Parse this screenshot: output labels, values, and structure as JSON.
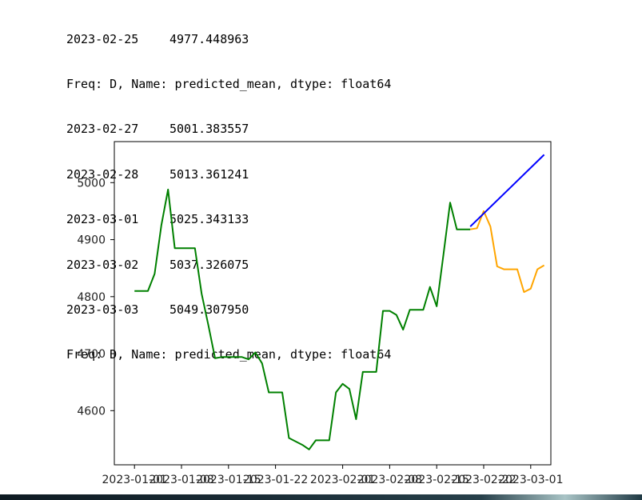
{
  "console": {
    "lines": [
      {
        "date": "2023-02-25",
        "value": "4977.448963"
      },
      {
        "text": "Freq: D, Name: predicted_mean, dtype: float64"
      },
      {
        "date": "2023-02-27",
        "value": "5001.383557"
      },
      {
        "date": "2023-02-28",
        "value": "5013.361241"
      },
      {
        "date": "2023-03-01",
        "value": "5025.343133"
      },
      {
        "date": "2023-03-02",
        "value": "5037.326075"
      },
      {
        "date": "2023-03-03",
        "value": "5049.307950"
      },
      {
        "text": "Freq: D, Name: predicted_mean, dtype: float64"
      }
    ]
  },
  "chart_data": {
    "type": "line",
    "title": "",
    "xlabel": "",
    "ylabel": "",
    "grid": false,
    "xlim": [
      "2022-12-29",
      "2023-03-04"
    ],
    "ylim": [
      4505,
      5072
    ],
    "x_ticks": [
      "2023-01-01",
      "2023-01-08",
      "2023-01-15",
      "2023-01-22",
      "2023-02-01",
      "2023-02-08",
      "2023-02-15",
      "2023-02-22",
      "2023-03-01"
    ],
    "x_tick_labels": [
      "2023-01-01",
      "2023-01-08",
      "2023-01-15",
      "2023-01-22",
      "2023-02-01",
      "2023-02-08",
      "2023-02-15",
      "2023-02-22",
      "2023-03-01"
    ],
    "y_ticks": [
      4600,
      4700,
      4800,
      4900,
      5000
    ],
    "y_tick_labels": [
      "4600",
      "4700",
      "4800",
      "4900",
      "5000"
    ],
    "series": [
      {
        "color": "#008000",
        "points": [
          [
            "2023-01-01",
            4810
          ],
          [
            "2023-01-03",
            4810
          ],
          [
            "2023-01-04",
            4840
          ],
          [
            "2023-01-05",
            4925
          ],
          [
            "2023-01-06",
            4988
          ],
          [
            "2023-01-07",
            4885
          ],
          [
            "2023-01-10",
            4885
          ],
          [
            "2023-01-11",
            4805
          ],
          [
            "2023-01-12",
            4750
          ],
          [
            "2023-01-13",
            4692
          ],
          [
            "2023-01-14",
            4694
          ],
          [
            "2023-01-17",
            4694
          ],
          [
            "2023-01-18",
            4690
          ],
          [
            "2023-01-19",
            4702
          ],
          [
            "2023-01-20",
            4683
          ],
          [
            "2023-01-21",
            4632
          ],
          [
            "2023-01-23",
            4632
          ],
          [
            "2023-01-24",
            4552
          ],
          [
            "2023-01-26",
            4540
          ],
          [
            "2023-01-27",
            4532
          ],
          [
            "2023-01-28",
            4548
          ],
          [
            "2023-01-30",
            4548
          ],
          [
            "2023-01-31",
            4632
          ],
          [
            "2023-02-01",
            4647
          ],
          [
            "2023-02-02",
            4638
          ],
          [
            "2023-02-03",
            4585
          ],
          [
            "2023-02-04",
            4668
          ],
          [
            "2023-02-06",
            4668
          ],
          [
            "2023-02-07",
            4775
          ],
          [
            "2023-02-08",
            4775
          ],
          [
            "2023-02-09",
            4768
          ],
          [
            "2023-02-10",
            4742
          ],
          [
            "2023-02-11",
            4777
          ],
          [
            "2023-02-13",
            4777
          ],
          [
            "2023-02-14",
            4817
          ],
          [
            "2023-02-15",
            4783
          ],
          [
            "2023-02-16",
            4873
          ],
          [
            "2023-02-17",
            4965
          ],
          [
            "2023-02-18",
            4918
          ],
          [
            "2023-02-20",
            4918
          ]
        ]
      },
      {
        "color": "#ffa500",
        "points": [
          [
            "2023-02-20",
            4918
          ],
          [
            "2023-02-21",
            4920
          ],
          [
            "2023-02-22",
            4950
          ],
          [
            "2023-02-23",
            4923
          ],
          [
            "2023-02-24",
            4853
          ],
          [
            "2023-02-25",
            4848
          ],
          [
            "2023-02-27",
            4848
          ],
          [
            "2023-02-28",
            4808
          ],
          [
            "2023-03-01",
            4814
          ],
          [
            "2023-03-02",
            4848
          ],
          [
            "2023-03-03",
            4855
          ]
        ]
      },
      {
        "color": "#0000ff",
        "points": [
          [
            "2023-02-20",
            4923
          ],
          [
            "2023-03-03",
            5049
          ]
        ]
      }
    ]
  }
}
